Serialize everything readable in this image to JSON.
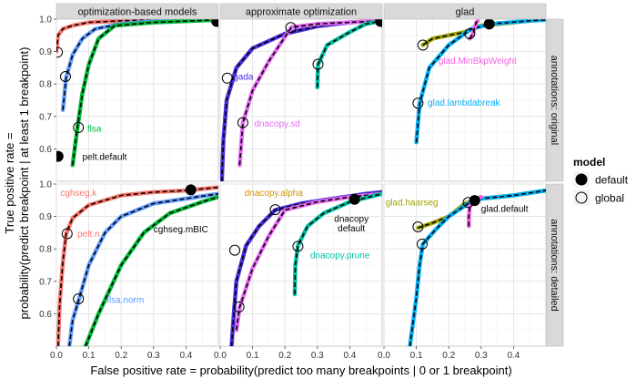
{
  "chart_data": {
    "type": "line",
    "xlabel": "False positive rate = probability(predict too many breakpoints | 0 or 1 breakpoint)",
    "ylabel_line1": "True positive rate =",
    "ylabel_line2": "probability(predict breakpoint | at least 1 breakpoint)",
    "xlim": [
      0,
      0.5
    ],
    "ylim": [
      0.5,
      1.0
    ],
    "x_ticks": [
      0,
      0.1,
      0.2,
      0.3,
      0.4
    ],
    "x_tick_labels": [
      "0.0",
      "0.1",
      "0.2",
      "0.3",
      "0.4"
    ],
    "x_tick_labels_last": [
      "0.0",
      "0.1",
      "0.2",
      "0.3",
      "0.4"
    ],
    "y_ticks": [
      0.6,
      0.7,
      0.8,
      0.9,
      1.0
    ],
    "y_tick_labels": [
      "0.6",
      "0.7",
      "0.8",
      "0.9",
      "1.0"
    ],
    "grid": true,
    "column_strips": [
      "optimization-based models",
      "approximate optimization",
      "glad"
    ],
    "row_strips": [
      "annotations: original",
      "annotations: detailed"
    ],
    "legend": {
      "title": "model",
      "placement": "right",
      "items": [
        {
          "label": "default",
          "symbol": "filled-circle"
        },
        {
          "label": "global",
          "symbol": "open-circle"
        }
      ]
    },
    "panels": [
      {
        "row": 0,
        "col": 0,
        "series": [
          {
            "color": "#f8766d",
            "points": [
              [
                0,
                0.9
              ],
              [
                0.005,
                0.95
              ],
              [
                0.02,
                0.97
              ],
              [
                0.05,
                0.98
              ],
              [
                0.1,
                0.99
              ],
              [
                0.2,
                0.995
              ],
              [
                0.3,
                0.998
              ],
              [
                0.5,
                1.0
              ]
            ]
          },
          {
            "color": "#619cff",
            "points": [
              [
                0.02,
                0.72
              ],
              [
                0.03,
                0.82
              ],
              [
                0.05,
                0.89
              ],
              [
                0.08,
                0.94
              ],
              [
                0.12,
                0.97
              ],
              [
                0.2,
                0.985
              ],
              [
                0.3,
                0.993
              ],
              [
                0.5,
                0.998
              ]
            ]
          },
          {
            "color": "#00ba38",
            "points": [
              [
                0.05,
                0.55
              ],
              [
                0.065,
                0.665
              ],
              [
                0.08,
                0.77
              ],
              [
                0.1,
                0.86
              ],
              [
                0.13,
                0.94
              ],
              [
                0.18,
                0.98
              ],
              [
                0.3,
                0.99
              ],
              [
                0.5,
                0.998
              ]
            ]
          }
        ],
        "default_points": [
          [
            0.005,
            0.577
          ],
          [
            0.495,
            0.993
          ]
        ],
        "global_points": [
          [
            0.003,
            0.898
          ],
          [
            0.028,
            0.823
          ],
          [
            0.068,
            0.666
          ]
        ],
        "labels": [
          {
            "text": "flsa",
            "x": 0.095,
            "y": 0.665,
            "color": "#00ba38",
            "anchor": "start"
          },
          {
            "text": "pelt.default",
            "x": 0.08,
            "y": 0.577,
            "color": "#000000",
            "anchor": "start"
          }
        ]
      },
      {
        "row": 0,
        "col": 1,
        "series": [
          {
            "color": "#4b2fe0",
            "points": [
              [
                0.005,
                0.5
              ],
              [
                0.01,
                0.63
              ],
              [
                0.02,
                0.75
              ],
              [
                0.05,
                0.85
              ],
              [
                0.1,
                0.91
              ],
              [
                0.2,
                0.955
              ],
              [
                0.3,
                0.978
              ],
              [
                0.4,
                0.99
              ],
              [
                0.5,
                0.995
              ]
            ]
          },
          {
            "color": "#e76bf3",
            "points": [
              [
                0.06,
                0.55
              ],
              [
                0.07,
                0.68
              ],
              [
                0.1,
                0.78
              ],
              [
                0.15,
                0.87
              ],
              [
                0.22,
                0.975
              ],
              [
                0.3,
                0.985
              ],
              [
                0.5,
                0.995
              ]
            ]
          },
          {
            "color": "#00bfa4",
            "points": [
              [
                0.3,
                0.79
              ],
              [
                0.302,
                0.86
              ],
              [
                0.33,
                0.92
              ],
              [
                0.4,
                0.96
              ],
              [
                0.45,
                0.985
              ],
              [
                0.5,
                0.995
              ]
            ]
          }
        ],
        "default_points": [
          [
            0.495,
            0.993
          ]
        ],
        "global_points": [
          [
            0.022,
            0.818
          ],
          [
            0.07,
            0.681
          ],
          [
            0.218,
            0.974
          ],
          [
            0.302,
            0.861
          ]
        ],
        "labels": [
          {
            "text": "gada",
            "x": 0.04,
            "y": 0.825,
            "color": "#4b2fe0",
            "anchor": "start"
          },
          {
            "text": "dnacopy.sd",
            "x": 0.105,
            "y": 0.68,
            "color": "#e76bf3",
            "anchor": "start"
          }
        ]
      },
      {
        "row": 0,
        "col": 2,
        "series": [
          {
            "color": "#a3a500",
            "points": [
              [
                0.12,
                0.92
              ],
              [
                0.15,
                0.94
              ],
              [
                0.25,
                0.96
              ],
              [
                0.3,
                0.98
              ],
              [
                0.4,
                0.99
              ],
              [
                0.5,
                1.0
              ]
            ]
          },
          {
            "color": "#00b0f6",
            "points": [
              [
                0.1,
                0.62
              ],
              [
                0.11,
                0.74
              ],
              [
                0.14,
                0.85
              ],
              [
                0.2,
                0.92
              ],
              [
                0.27,
                0.97
              ],
              [
                0.33,
                0.985
              ],
              [
                0.45,
                0.995
              ],
              [
                0.5,
                0.998
              ]
            ]
          },
          {
            "color": "#f564e3",
            "points": [
              [
                0.265,
                0.94
              ],
              [
                0.275,
                0.955
              ],
              [
                0.28,
                0.975
              ],
              [
                0.285,
                0.99
              ],
              [
                0.29,
                0.995
              ]
            ]
          }
        ],
        "default_points": [
          [
            0.325,
            0.985
          ]
        ],
        "global_points": [
          [
            0.12,
            0.92
          ],
          [
            0.105,
            0.741
          ],
          [
            0.265,
            0.955
          ]
        ],
        "labels": [
          {
            "text": "glad.MinBkpWeight",
            "x": 0.168,
            "y": 0.874,
            "color": "#f564e3",
            "anchor": "start"
          },
          {
            "text": "glad.lambdabreak",
            "x": 0.135,
            "y": 0.745,
            "color": "#00b0f6",
            "anchor": "start"
          }
        ]
      },
      {
        "row": 1,
        "col": 0,
        "series": [
          {
            "color": "#f8766d",
            "points": [
              [
                0.005,
                0.5
              ],
              [
                0.01,
                0.63
              ],
              [
                0.02,
                0.76
              ],
              [
                0.03,
                0.847
              ],
              [
                0.05,
                0.895
              ],
              [
                0.1,
                0.935
              ],
              [
                0.2,
                0.965
              ],
              [
                0.3,
                0.975
              ],
              [
                0.4,
                0.98
              ],
              [
                0.5,
                0.99
              ]
            ]
          },
          {
            "color": "#619cff",
            "points": [
              [
                0.04,
                0.5
              ],
              [
                0.05,
                0.58
              ],
              [
                0.07,
                0.646
              ],
              [
                0.1,
                0.75
              ],
              [
                0.15,
                0.85
              ],
              [
                0.2,
                0.9
              ],
              [
                0.3,
                0.94
              ],
              [
                0.4,
                0.955
              ],
              [
                0.5,
                0.97
              ]
            ]
          },
          {
            "color": "#00ba38",
            "points": [
              [
                0.09,
                0.5
              ],
              [
                0.13,
                0.6
              ],
              [
                0.2,
                0.75
              ],
              [
                0.27,
                0.85
              ],
              [
                0.35,
                0.91
              ],
              [
                0.45,
                0.945
              ],
              [
                0.5,
                0.96
              ]
            ]
          }
        ],
        "default_points": [
          [
            0.415,
            0.982
          ]
        ],
        "global_points": [
          [
            0.033,
            0.847
          ],
          [
            0.068,
            0.646
          ]
        ],
        "labels": [
          {
            "text": "cghseg.k",
            "x": 0.012,
            "y": 0.975,
            "color": "#f8766d",
            "anchor": "start"
          },
          {
            "text": "pelt.n",
            "x": 0.065,
            "y": 0.848,
            "color": "#f8766d",
            "anchor": "start"
          },
          {
            "text": "cghseg.mBIC",
            "x": 0.3,
            "y": 0.862,
            "color": "#000000",
            "anchor": "start"
          },
          {
            "text": "flsa.norm",
            "x": 0.155,
            "y": 0.645,
            "color": "#619cff",
            "anchor": "start"
          }
        ]
      },
      {
        "row": 1,
        "col": 1,
        "series": [
          {
            "color": "#4b2fe0",
            "points": [
              [
                0.035,
                0.5
              ],
              [
                0.042,
                0.6
              ],
              [
                0.05,
                0.7
              ],
              [
                0.08,
                0.81
              ],
              [
                0.12,
                0.87
              ],
              [
                0.17,
                0.92
              ],
              [
                0.25,
                0.94
              ],
              [
                0.35,
                0.955
              ],
              [
                0.45,
                0.97
              ],
              [
                0.5,
                0.975
              ]
            ]
          },
          {
            "color": "#e76bf3",
            "points": [
              [
                0.05,
                0.55
              ],
              [
                0.06,
                0.62
              ],
              [
                0.1,
                0.74
              ],
              [
                0.15,
                0.84
              ],
              [
                0.2,
                0.92
              ],
              [
                0.3,
                0.945
              ],
              [
                0.4,
                0.96
              ],
              [
                0.5,
                0.97
              ]
            ]
          },
          {
            "color": "#00bfa4",
            "points": [
              [
                0.23,
                0.66
              ],
              [
                0.232,
                0.75
              ],
              [
                0.24,
                0.81
              ],
              [
                0.27,
                0.87
              ],
              [
                0.32,
                0.91
              ],
              [
                0.4,
                0.945
              ],
              [
                0.5,
                0.97
              ]
            ]
          }
        ],
        "default_points": [
          [
            0.415,
            0.953
          ]
        ],
        "global_points": [
          [
            0.045,
            0.796
          ],
          [
            0.058,
            0.621
          ],
          [
            0.17,
            0.921
          ],
          [
            0.24,
            0.808
          ]
        ],
        "labels": [
          {
            "text": "dnacopy.alpha",
            "x": 0.165,
            "y": 0.975,
            "color": "#d39200",
            "anchor": "middle"
          },
          {
            "text": "dnacopy",
            "x": 0.405,
            "y": 0.894,
            "color": "#000000",
            "anchor": "middle"
          },
          {
            "text": "default",
            "x": 0.405,
            "y": 0.865,
            "color": "#000000",
            "anchor": "middle"
          },
          {
            "text": "dnacopy.prune",
            "x": 0.37,
            "y": 0.782,
            "color": "#00bfa4",
            "anchor": "middle"
          }
        ]
      },
      {
        "row": 1,
        "col": 2,
        "series": [
          {
            "color": "#a3a500",
            "points": [
              [
                0.105,
                0.865
              ],
              [
                0.15,
                0.88
              ],
              [
                0.2,
                0.9
              ],
              [
                0.25,
                0.94
              ],
              [
                0.3,
                0.955
              ],
              [
                0.4,
                0.965
              ],
              [
                0.5,
                0.98
              ]
            ]
          },
          {
            "color": "#00b0f6",
            "points": [
              [
                0.08,
                0.5
              ],
              [
                0.1,
                0.65
              ],
              [
                0.11,
                0.75
              ],
              [
                0.12,
                0.815
              ],
              [
                0.16,
                0.86
              ],
              [
                0.2,
                0.9
              ],
              [
                0.26,
                0.94
              ],
              [
                0.3,
                0.955
              ],
              [
                0.4,
                0.965
              ],
              [
                0.5,
                0.98
              ]
            ]
          },
          {
            "color": "#f564e3",
            "points": [
              [
                0.262,
                0.87
              ],
              [
                0.262,
                0.9
              ],
              [
                0.265,
                0.93
              ],
              [
                0.275,
                0.95
              ],
              [
                0.3,
                0.96
              ]
            ]
          }
        ],
        "default_points": [
          [
            0.28,
            0.949
          ]
        ],
        "global_points": [
          [
            0.105,
            0.868
          ],
          [
            0.118,
            0.815
          ],
          [
            0.26,
            0.943
          ]
        ],
        "labels": [
          {
            "text": "glad.haarseg",
            "x": 0.005,
            "y": 0.945,
            "color": "#a3a500",
            "anchor": "start"
          },
          {
            "text": "glad.default",
            "x": 0.3,
            "y": 0.925,
            "color": "#000000",
            "anchor": "start"
          }
        ]
      }
    ]
  }
}
